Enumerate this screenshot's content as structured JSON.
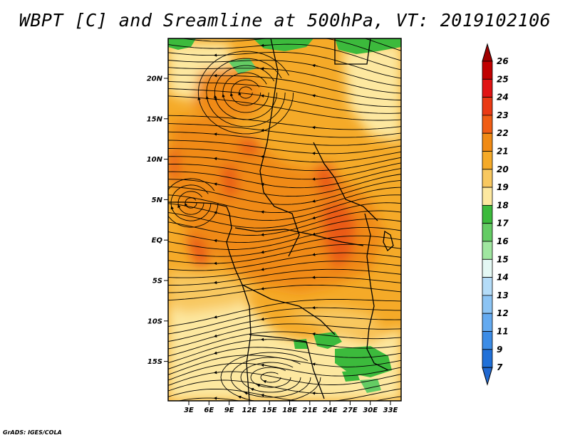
{
  "title": "WBPT [C] and Sreamline at 500hPa, VT: 2019102106",
  "credit": "GrADS: IGES/COLA",
  "map": {
    "lat_labels": [
      "20N",
      "15N",
      "10N",
      "5N",
      "EQ",
      "5S",
      "10S",
      "15S"
    ],
    "lon_labels": [
      "3E",
      "6E",
      "9E",
      "12E",
      "15E",
      "18E",
      "21E",
      "24E",
      "27E",
      "30E",
      "33E"
    ]
  },
  "colorbar": {
    "labels": [
      "26",
      "25",
      "24",
      "23",
      "22",
      "21",
      "20",
      "19",
      "18",
      "17",
      "16",
      "15",
      "14",
      "13",
      "12",
      "11",
      "9",
      "7"
    ],
    "colors": [
      "#c00000",
      "#e01414",
      "#ea3a14",
      "#f05d14",
      "#f08a14",
      "#f5aa28",
      "#f8c860",
      "#fde8a0",
      "#3cba3c",
      "#64cc64",
      "#a0e6a0",
      "#e4f8f4",
      "#b4dcf8",
      "#8cc4f4",
      "#64aaf0",
      "#3c8ce6",
      "#2070d8"
    ],
    "top_color": "#a00000",
    "bottom_color": "#2068d0"
  },
  "field_colors": {
    "base": "#f5aa28",
    "light": "#fde8a0",
    "pale": "#f8c860",
    "dark": "#f08a14",
    "hot": "#ea5a14",
    "green": "#3cba3c",
    "green_light": "#64cc64"
  }
}
